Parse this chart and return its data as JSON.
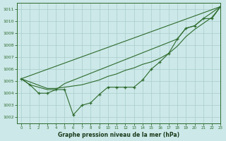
{
  "title": "Graphe pression niveau de la mer (hPa)",
  "background_color": "#cce8e8",
  "grid_color": "#aacccc",
  "line_color": "#2d6b2d",
  "xlim": [
    -0.5,
    23
  ],
  "ylim": [
    1001.5,
    1011.5
  ],
  "yticks": [
    1002,
    1003,
    1004,
    1005,
    1006,
    1007,
    1008,
    1009,
    1010,
    1011
  ],
  "xticks": [
    0,
    1,
    2,
    3,
    4,
    5,
    6,
    7,
    8,
    9,
    10,
    11,
    12,
    13,
    14,
    15,
    16,
    17,
    18,
    19,
    20,
    21,
    22,
    23
  ],
  "main_x": [
    0,
    1,
    2,
    3,
    4,
    5,
    6,
    7,
    8,
    9,
    10,
    11,
    12,
    13,
    14,
    15,
    16,
    17,
    18,
    19,
    20,
    21,
    22,
    23
  ],
  "main_y": [
    1005.2,
    1004.7,
    1004.0,
    1004.0,
    1004.3,
    1004.3,
    1002.2,
    1003.0,
    1003.2,
    1003.9,
    1004.5,
    1004.5,
    1004.5,
    1004.5,
    1005.1,
    1006.0,
    1006.6,
    1007.3,
    1008.5,
    1009.4,
    1009.6,
    1010.2,
    1010.2,
    1011.2
  ],
  "line2_x": [
    0,
    1,
    3,
    4,
    5,
    18,
    19,
    20,
    21,
    23
  ],
  "line2_y": [
    1005.2,
    1004.7,
    1004.3,
    1004.3,
    1004.8,
    1008.5,
    1009.4,
    1009.6,
    1010.2,
    1011.2
  ],
  "line3_x": [
    0,
    3,
    4,
    5,
    6,
    7,
    8,
    9,
    10,
    11,
    12,
    13,
    14,
    15,
    16,
    17,
    18,
    19,
    20,
    21,
    22,
    23
  ],
  "line3_y": [
    1005.2,
    1004.4,
    1004.4,
    1004.5,
    1004.6,
    1004.7,
    1004.9,
    1005.1,
    1005.4,
    1005.6,
    1005.9,
    1006.1,
    1006.4,
    1006.6,
    1006.9,
    1007.3,
    1007.9,
    1008.7,
    1009.3,
    1009.8,
    1010.3,
    1011.2
  ],
  "line4_x": [
    0,
    23
  ],
  "line4_y": [
    1005.2,
    1011.2
  ]
}
